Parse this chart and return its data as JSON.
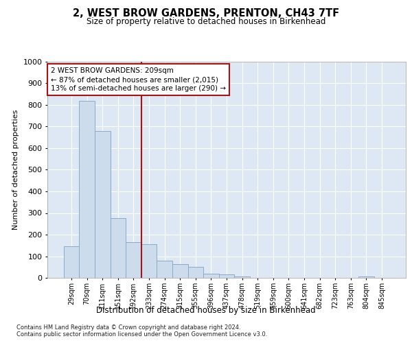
{
  "title": "2, WEST BROW GARDENS, PRENTON, CH43 7TF",
  "subtitle": "Size of property relative to detached houses in Birkenhead",
  "xlabel": "Distribution of detached houses by size in Birkenhead",
  "ylabel": "Number of detached properties",
  "bar_color": "#ccdcec",
  "bar_edge_color": "#8aaac8",
  "vline_color": "#aa1111",
  "categories": [
    "29sqm",
    "70sqm",
    "111sqm",
    "151sqm",
    "192sqm",
    "233sqm",
    "274sqm",
    "315sqm",
    "355sqm",
    "396sqm",
    "437sqm",
    "478sqm",
    "519sqm",
    "559sqm",
    "600sqm",
    "641sqm",
    "682sqm",
    "723sqm",
    "763sqm",
    "804sqm",
    "845sqm"
  ],
  "values": [
    145,
    820,
    680,
    275,
    165,
    155,
    80,
    65,
    50,
    20,
    15,
    5,
    0,
    0,
    0,
    0,
    0,
    0,
    0,
    5,
    0
  ],
  "ylim": [
    0,
    1000
  ],
  "yticks": [
    0,
    100,
    200,
    300,
    400,
    500,
    600,
    700,
    800,
    900,
    1000
  ],
  "vline_index": 4.5,
  "annotation_text": "2 WEST BROW GARDENS: 209sqm\n← 87% of detached houses are smaller (2,015)\n13% of semi-detached houses are larger (290) →",
  "annotation_box_color": "#ffffff",
  "annotation_border_color": "#aa1111",
  "footnote1": "Contains HM Land Registry data © Crown copyright and database right 2024.",
  "footnote2": "Contains public sector information licensed under the Open Government Licence v3.0.",
  "background_color": "#dde8f4",
  "grid_color": "#ffffff",
  "fig_background": "#ffffff"
}
